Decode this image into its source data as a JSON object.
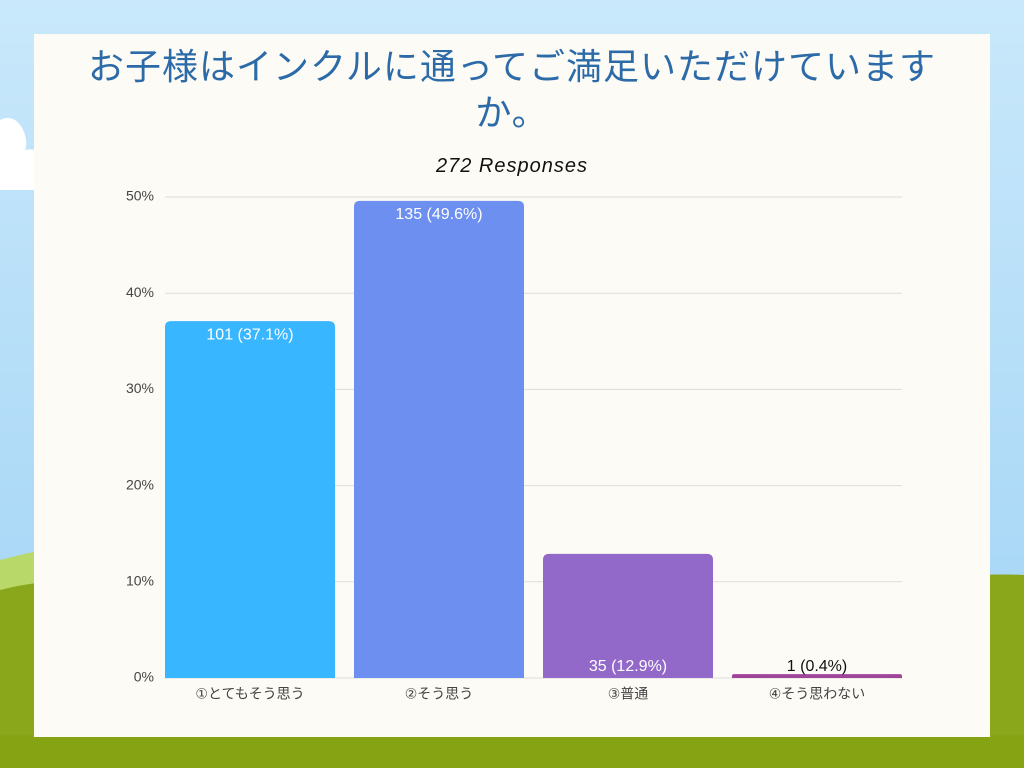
{
  "chart_data": {
    "type": "bar",
    "title": "お子様はインクルに通ってご満足いただけていますか。",
    "subtitle": "272 Responses",
    "categories": [
      "①とてもそう思う",
      "②そう思う",
      "③普通",
      "④そう思わない"
    ],
    "values": [
      37.1,
      49.6,
      12.9,
      0.4
    ],
    "value_labels": [
      "101 (37.1%)",
      "135 (49.6%)",
      "35 (12.9%)",
      "1 (0.4%)"
    ],
    "colors": [
      "#38b6ff",
      "#6d8fef",
      "#9268c8",
      "#a0449a"
    ],
    "ylim": [
      0,
      50
    ],
    "yticks": [
      {
        "value": 0,
        "label": "0%"
      },
      {
        "value": 10,
        "label": "10%"
      },
      {
        "value": 20,
        "label": "20%"
      },
      {
        "value": 30,
        "label": "30%"
      },
      {
        "value": 40,
        "label": "40%"
      },
      {
        "value": 50,
        "label": "50%"
      }
    ],
    "grid": true
  }
}
